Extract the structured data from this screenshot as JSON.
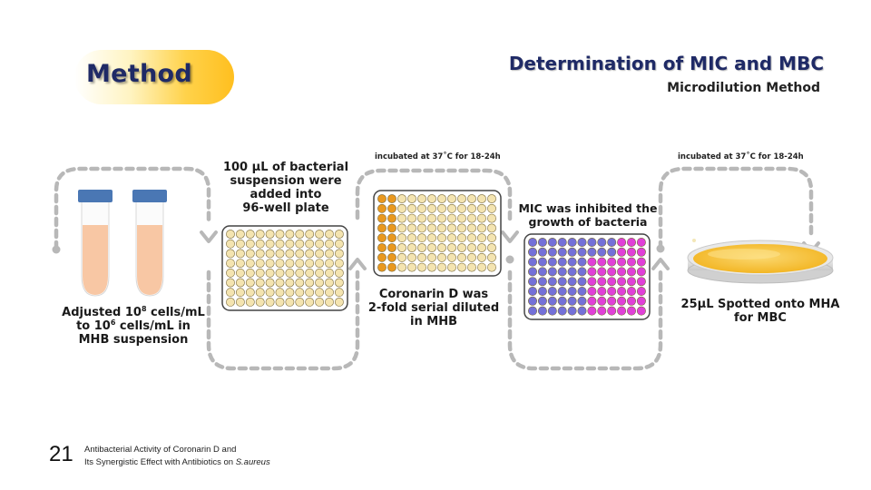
{
  "header": {
    "section_label": "Method",
    "title": "Determination of MIC and MBC",
    "subtitle": "Microdilution Method"
  },
  "steps": {
    "tubes": {
      "line1_a": "Adjusted 10",
      "line1_exp": "8",
      "line1_b": " cells/mL",
      "line2_a": "to 10",
      "line2_exp": "6",
      "line2_b": " cells/mL in",
      "line3": "MHB suspension"
    },
    "plate_fill": {
      "line1": "100 µL of bacterial",
      "line2": "suspension were",
      "line3": "added into",
      "line4": "96-well plate"
    },
    "incubation_1": "incubated at 37˚C for 18-24h",
    "dilution": {
      "line1": "Coronarin D was",
      "line2": "2-fold serial diluted",
      "line3": "in MHB"
    },
    "mic": {
      "line1": "MIC was inhibited the",
      "line2": "growth of bacteria"
    },
    "incubation_2": "incubated at 37˚C for 18-24h",
    "mbc": {
      "line1": "25µL  Spotted onto MHA",
      "line2": "for MBC"
    }
  },
  "colors": {
    "title_navy": "#1f2a66",
    "tube_cap": "#4a77b4",
    "tube_liquid": "#f8c7a4",
    "well_cream": "#f4e4b0",
    "well_orange": "#e9981f",
    "well_blue": "#7470d8",
    "well_magenta": "#e040d8",
    "agar_yellow": "#f5c030",
    "connector_gray": "#b8b8b8"
  },
  "footer": {
    "slide_number": "21",
    "caption_line1": "Antibacterial Activity of Coronarin D and",
    "caption_line2_a": "Its Synergistic Effect  with Antibiotics on ",
    "caption_line2_b": "S.aureus"
  }
}
